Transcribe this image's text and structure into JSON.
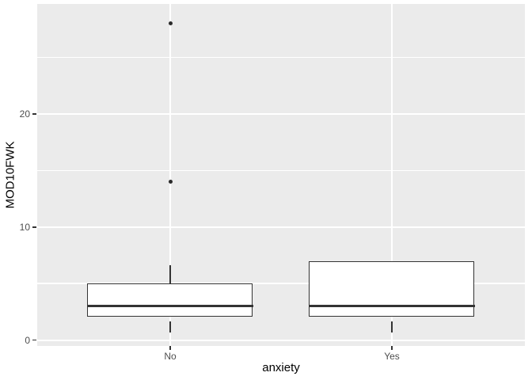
{
  "figure": {
    "background": "#FFFFFF",
    "panel_background": "#EBEBEB",
    "gridline_color": "#FFFFFF",
    "box_stroke": "#333333",
    "box_fill": "#FFFFFF",
    "outlier_color": "#2B2B2B",
    "tick_color": "#333333",
    "axis_text_color": "#4D4D4D",
    "axis_title_color": "#000000"
  },
  "chart_data": {
    "type": "boxplot",
    "title": "",
    "xlabel": "anxiety",
    "ylabel": "MOD10FWK",
    "categories": [
      "No",
      "Yes"
    ],
    "y_ticks": [
      0,
      10,
      20
    ],
    "y_tick_labels": [
      "0",
      "10",
      "20"
    ],
    "y_minor_ticks": [
      5,
      15,
      25
    ],
    "ylim": [
      -0.5,
      29.8
    ],
    "grid": "on",
    "legend": "none",
    "series": [
      {
        "category": "No",
        "min": 1,
        "q1": 2,
        "median": 3,
        "q3": 5,
        "max": 7,
        "outliers": [
          14,
          28
        ]
      },
      {
        "category": "Yes",
        "min": 1,
        "q1": 2,
        "median": 3,
        "q3": 7,
        "max": 7,
        "outliers": []
      }
    ]
  }
}
